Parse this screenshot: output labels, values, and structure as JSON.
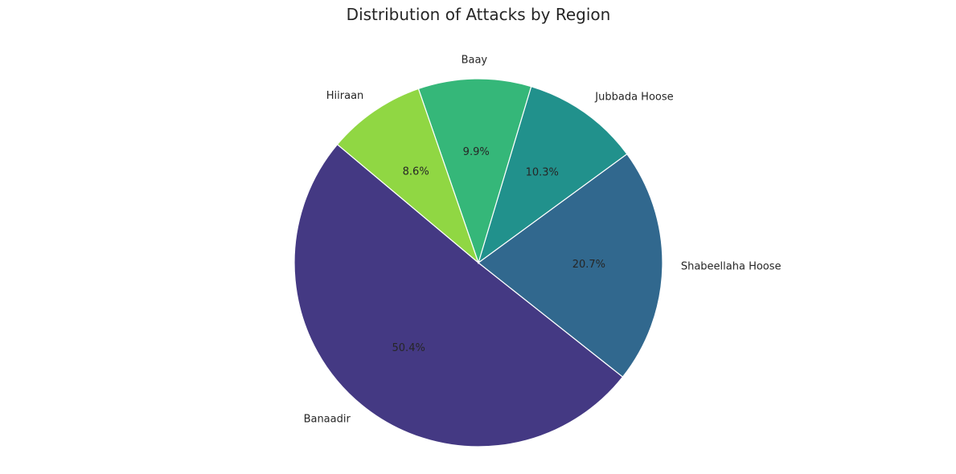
{
  "chart_data": {
    "type": "pie",
    "title": "Distribution of Attacks by Region",
    "categories": [
      "Banaadir",
      "Shabeellaha Hoose",
      "Jubbada Hoose",
      "Baay",
      "Hiiraan"
    ],
    "values": [
      50.4,
      20.7,
      10.3,
      9.9,
      8.6
    ],
    "value_labels": [
      "50.4%",
      "20.7%",
      "10.3%",
      "9.9%",
      "8.6%"
    ],
    "colors": [
      "#443983",
      "#31688e",
      "#21918c",
      "#35b779",
      "#90d743"
    ],
    "start_angle_deg": 140,
    "direction": "counterclockwise",
    "legend": "none"
  }
}
